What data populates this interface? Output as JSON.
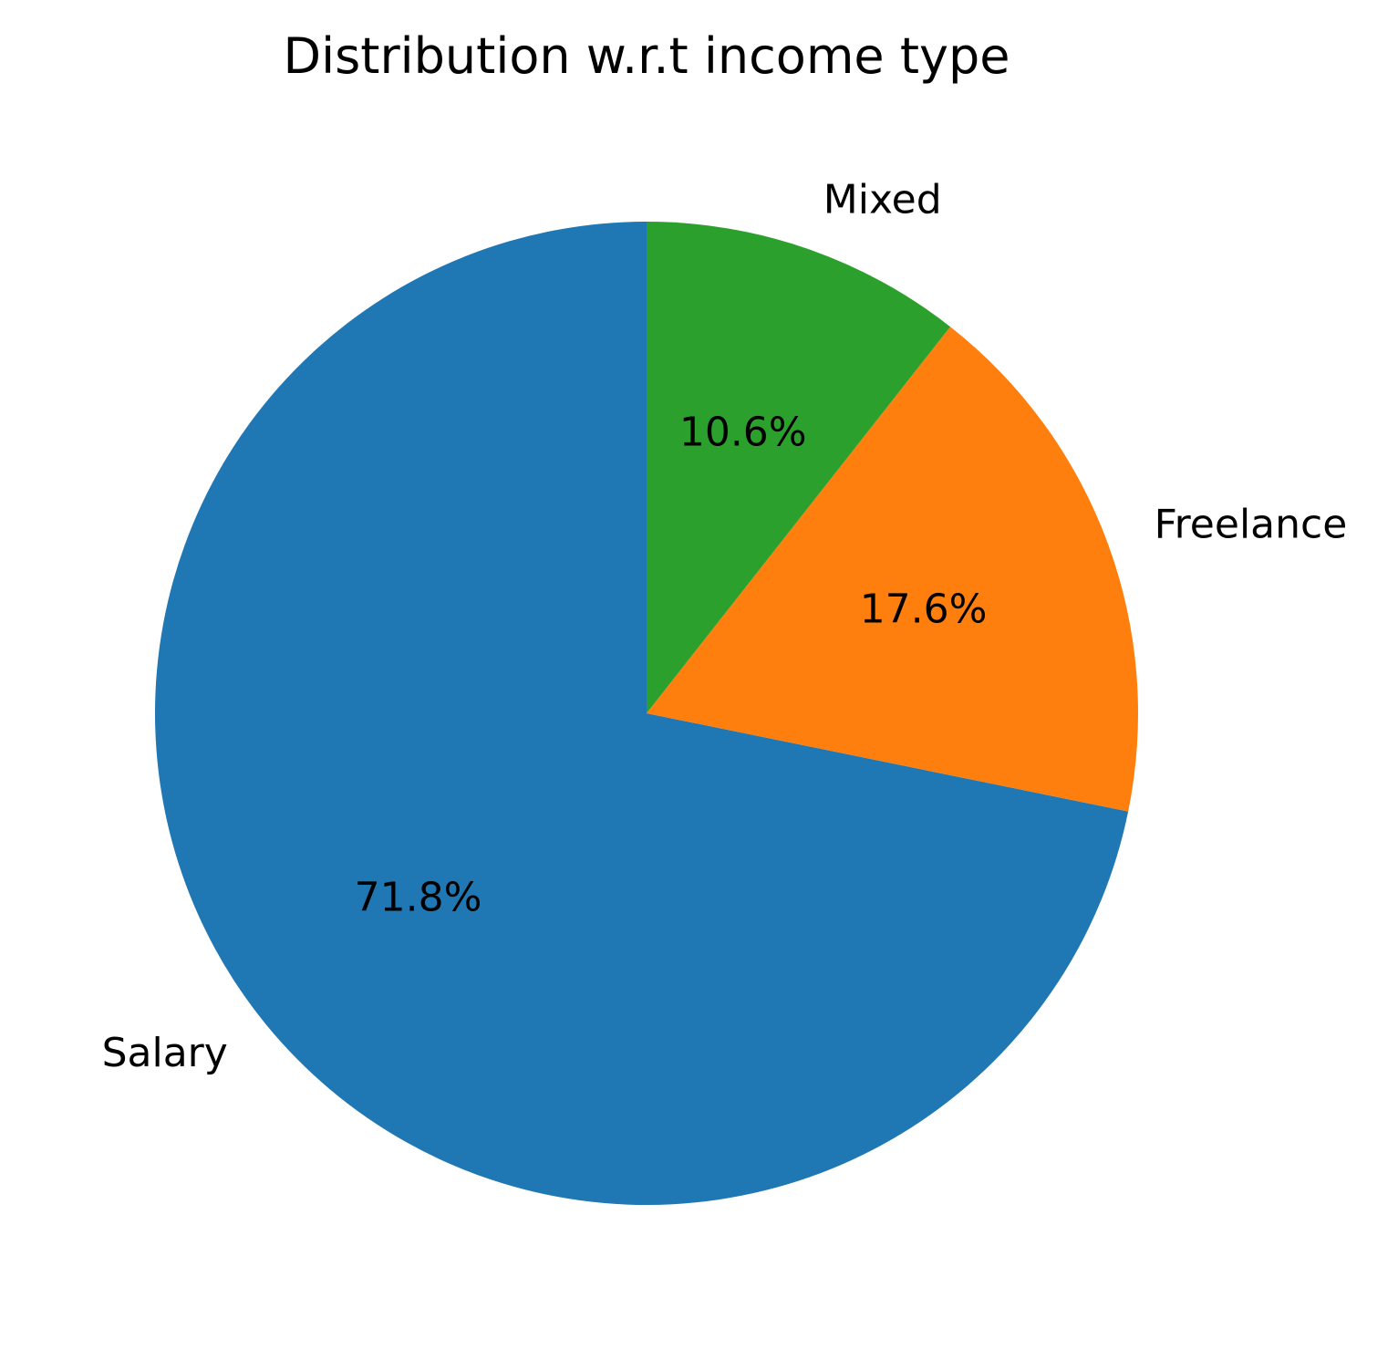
{
  "chart_data": {
    "type": "pie",
    "title": "Distribution w.r.t income type",
    "categories": [
      "Salary",
      "Freelance",
      "Mixed"
    ],
    "values": [
      71.8,
      17.6,
      10.6
    ],
    "value_labels": [
      "71.8%",
      "17.6%",
      "10.6%"
    ],
    "colors": [
      "#1f77b4",
      "#ff7f0e",
      "#2ca02c"
    ],
    "start_angle_deg": 90,
    "direction": "counterclockwise",
    "legend": "none"
  }
}
